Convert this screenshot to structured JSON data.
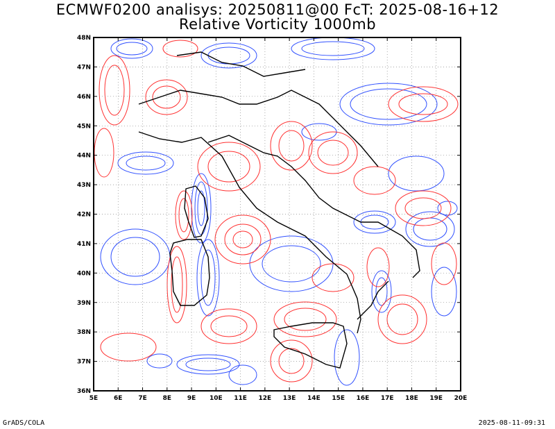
{
  "title_line1": "ECMWF0200 analisys: 20250811@00 FcT: 2025-08-16+12",
  "title_line2": "Relative Vorticity 1000mb",
  "footer_left": "GrADS/COLA",
  "footer_right": "2025-08-11-09:31",
  "lon_labels": [
    "5E",
    "6E",
    "7E",
    "8E",
    "9E",
    "10E",
    "11E",
    "12E",
    "13E",
    "14E",
    "15E",
    "16E",
    "17E",
    "18E",
    "19E",
    "20E"
  ],
  "lat_labels": [
    "36N",
    "37N",
    "38N",
    "39N",
    "40N",
    "41N",
    "42N",
    "43N",
    "44N",
    "45N",
    "46N",
    "47N",
    "48N"
  ],
  "colors": {
    "positive_vorticity": "#ff3030",
    "negative_vorticity": "#3050ff",
    "coastline": "#000000",
    "grid": "#888888"
  }
}
